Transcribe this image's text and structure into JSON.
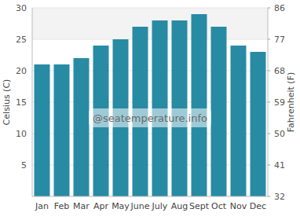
{
  "chart_data": {
    "type": "bar",
    "y_label": "Celsius (C)",
    "y2_label": "Fahrenheit (F)",
    "annotations": [
      "@seatemperature.info"
    ],
    "categories": [
      "Jan",
      "Feb",
      "Mar",
      "Apr",
      "May",
      "June",
      "July",
      "Aug",
      "Sept",
      "Oct",
      "Nov",
      "Dec"
    ],
    "values": [
      21,
      21,
      22,
      24,
      25,
      27,
      28,
      28,
      29,
      27,
      24,
      23
    ],
    "color": "#288ba4",
    "ylim": [
      0,
      30
    ],
    "yticks": [
      5,
      10,
      15,
      20,
      25,
      30
    ],
    "y2lim": [
      32,
      86
    ],
    "y2ticks": [
      32,
      41,
      50,
      59,
      68,
      77,
      86
    ],
    "grid": true
  }
}
